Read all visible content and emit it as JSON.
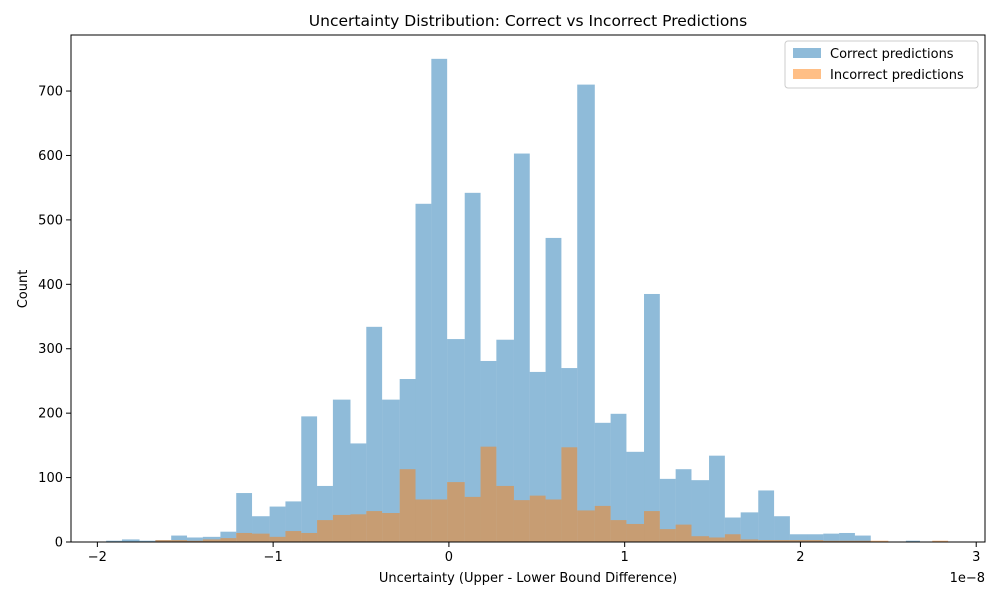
{
  "chart_data": {
    "type": "histogram",
    "title": "Uncertainty Distribution: Correct vs Incorrect Predictions",
    "xlabel": "Uncertainty (Upper - Lower Bound Difference)",
    "ylabel": "Count",
    "x_offset_label": "1e−8",
    "xlim": [
      -2.15,
      3.05
    ],
    "ylim": [
      0,
      787
    ],
    "x_ticks": [
      -2,
      -1,
      0,
      1,
      2,
      3
    ],
    "x_tick_labels": [
      "−2",
      "−1",
      "0",
      "1",
      "2",
      "3"
    ],
    "y_ticks": [
      0,
      100,
      200,
      300,
      400,
      500,
      600,
      700
    ],
    "y_tick_labels": [
      "0",
      "100",
      "200",
      "300",
      "400",
      "500",
      "600",
      "700"
    ],
    "grid": false,
    "legend_position": "top-right",
    "series": [
      {
        "name": "Correct predictions",
        "color": "#1f77b4",
        "opacity": 0.5,
        "bins": [
          [
            -1.95,
            -1.86,
            2
          ],
          [
            -1.86,
            -1.76,
            4
          ],
          [
            -1.76,
            -1.67,
            2
          ],
          [
            -1.67,
            -1.58,
            3
          ],
          [
            -1.58,
            -1.49,
            10
          ],
          [
            -1.49,
            -1.4,
            7
          ],
          [
            -1.4,
            -1.3,
            8
          ],
          [
            -1.3,
            -1.21,
            16
          ],
          [
            -1.21,
            -1.12,
            76
          ],
          [
            -1.12,
            -1.02,
            40
          ],
          [
            -1.02,
            -0.93,
            55
          ],
          [
            -0.93,
            -0.84,
            63
          ],
          [
            -0.84,
            -0.75,
            195
          ],
          [
            -0.75,
            -0.66,
            87
          ],
          [
            -0.66,
            -0.56,
            221
          ],
          [
            -0.56,
            -0.47,
            153
          ],
          [
            -0.47,
            -0.38,
            334
          ],
          [
            -0.38,
            -0.28,
            221
          ],
          [
            -0.28,
            -0.19,
            253
          ],
          [
            -0.19,
            -0.1,
            525
          ],
          [
            -0.1,
            -0.01,
            750
          ],
          [
            -0.01,
            0.09,
            315
          ],
          [
            0.09,
            0.18,
            542
          ],
          [
            0.18,
            0.27,
            281
          ],
          [
            0.27,
            0.37,
            314
          ],
          [
            0.37,
            0.46,
            603
          ],
          [
            0.46,
            0.55,
            264
          ],
          [
            0.55,
            0.64,
            472
          ],
          [
            0.64,
            0.73,
            270
          ],
          [
            0.73,
            0.83,
            710
          ],
          [
            0.83,
            0.92,
            185
          ],
          [
            0.92,
            1.01,
            199
          ],
          [
            1.01,
            1.11,
            140
          ],
          [
            1.11,
            1.2,
            385
          ],
          [
            1.2,
            1.29,
            98
          ],
          [
            1.29,
            1.38,
            113
          ],
          [
            1.38,
            1.48,
            96
          ],
          [
            1.48,
            1.57,
            134
          ],
          [
            1.57,
            1.66,
            38
          ],
          [
            1.66,
            1.76,
            46
          ],
          [
            1.76,
            1.85,
            80
          ],
          [
            1.85,
            1.94,
            40
          ],
          [
            1.94,
            2.04,
            12
          ],
          [
            2.04,
            2.13,
            12
          ],
          [
            2.13,
            2.22,
            13
          ],
          [
            2.22,
            2.31,
            14
          ],
          [
            2.31,
            2.4,
            10
          ],
          [
            2.6,
            2.68,
            2
          ]
        ]
      },
      {
        "name": "Incorrect predictions",
        "color": "#ff7f0e",
        "opacity": 0.5,
        "bins": [
          [
            -1.67,
            -1.58,
            3
          ],
          [
            -1.58,
            -1.49,
            3
          ],
          [
            -1.49,
            -1.4,
            2
          ],
          [
            -1.4,
            -1.3,
            4
          ],
          [
            -1.3,
            -1.21,
            6
          ],
          [
            -1.21,
            -1.12,
            14
          ],
          [
            -1.12,
            -1.02,
            13
          ],
          [
            -1.02,
            -0.93,
            8
          ],
          [
            -0.93,
            -0.84,
            17
          ],
          [
            -0.84,
            -0.75,
            14
          ],
          [
            -0.75,
            -0.66,
            34
          ],
          [
            -0.66,
            -0.56,
            42
          ],
          [
            -0.56,
            -0.47,
            43
          ],
          [
            -0.47,
            -0.38,
            48
          ],
          [
            -0.38,
            -0.28,
            45
          ],
          [
            -0.28,
            -0.19,
            113
          ],
          [
            -0.19,
            -0.1,
            66
          ],
          [
            -0.1,
            -0.01,
            66
          ],
          [
            -0.01,
            0.09,
            93
          ],
          [
            0.09,
            0.18,
            70
          ],
          [
            0.18,
            0.27,
            148
          ],
          [
            0.27,
            0.37,
            87
          ],
          [
            0.37,
            0.46,
            65
          ],
          [
            0.46,
            0.55,
            72
          ],
          [
            0.55,
            0.64,
            66
          ],
          [
            0.64,
            0.73,
            147
          ],
          [
            0.73,
            0.83,
            49
          ],
          [
            0.83,
            0.92,
            56
          ],
          [
            0.92,
            1.01,
            34
          ],
          [
            1.01,
            1.11,
            28
          ],
          [
            1.11,
            1.2,
            48
          ],
          [
            1.2,
            1.29,
            20
          ],
          [
            1.29,
            1.38,
            27
          ],
          [
            1.38,
            1.48,
            9
          ],
          [
            1.48,
            1.57,
            7
          ],
          [
            1.57,
            1.66,
            12
          ],
          [
            1.66,
            1.76,
            4
          ],
          [
            1.76,
            1.85,
            3
          ],
          [
            1.85,
            1.94,
            3
          ],
          [
            1.94,
            2.04,
            3
          ],
          [
            2.04,
            2.13,
            3
          ],
          [
            2.13,
            2.22,
            2
          ],
          [
            2.22,
            2.31,
            2
          ],
          [
            2.31,
            2.4,
            2
          ],
          [
            2.4,
            2.5,
            2
          ],
          [
            2.75,
            2.84,
            2
          ]
        ]
      }
    ]
  }
}
